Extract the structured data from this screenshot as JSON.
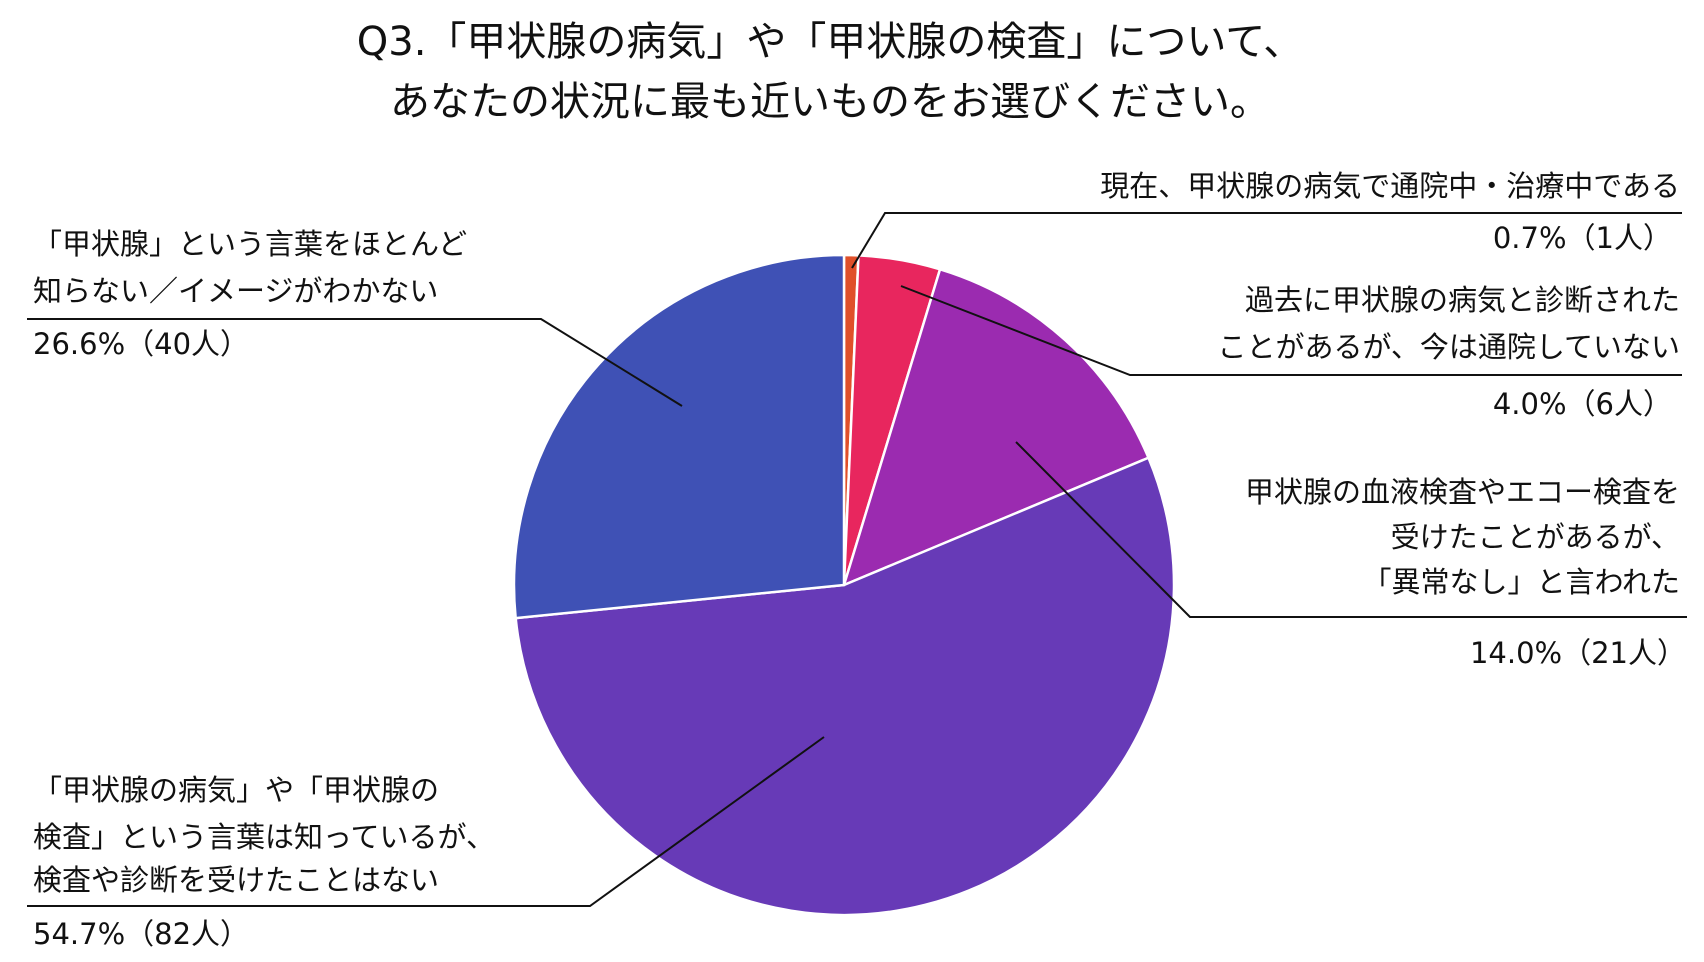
{
  "chart_data": {
    "type": "pie",
    "title": [
      "Q3.「甲状腺の病気」や「甲状腺の検査」について、",
      "あなたの状況に最も近いものをお選びください。"
    ],
    "categories": [
      [
        "現在、甲状腺の病気で通院中・治療中である"
      ],
      [
        "過去に甲状腺の病気と診断された",
        "ことがあるが、今は通院していない"
      ],
      [
        "甲状腺の血液検査やエコー検査を",
        "受けたことがあるが、",
        "「異常なし」と言われた"
      ],
      [
        "「甲状腺の病気」や「甲状腺の",
        "検査」という言葉は知っているが、",
        "検査や診断を受けたことはない"
      ],
      [
        "「甲状腺」という言葉をほとんど",
        "知らない／イメージがわかない"
      ]
    ],
    "values": [
      0.7,
      4.0,
      14.0,
      54.7,
      26.6
    ],
    "value_labels": [
      "0.7%（1人）",
      "4.0%（6人）",
      "14.0%（21人）",
      "54.7%（82人）",
      "26.6%（40人）"
    ],
    "colors": [
      "#e0502a",
      "#e8265e",
      "#9b2bb0",
      "#673ab7",
      "#3f51b5"
    ]
  }
}
